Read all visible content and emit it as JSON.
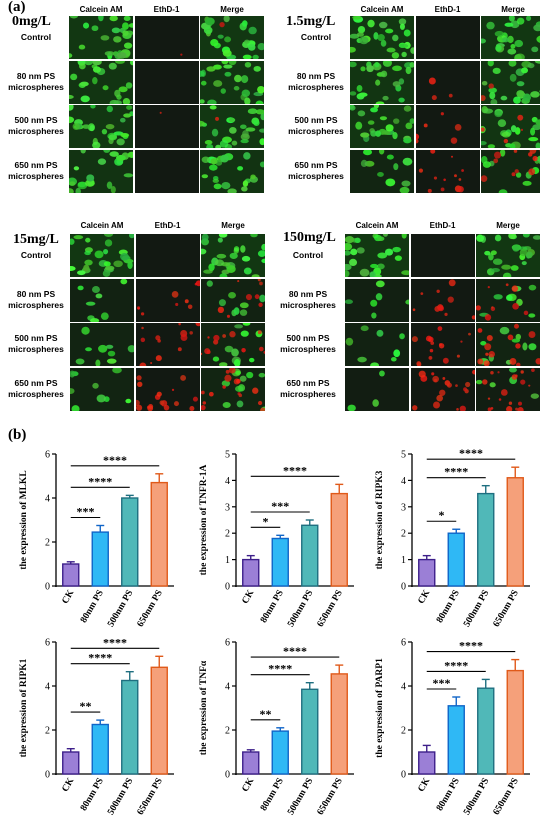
{
  "figure_labels": {
    "a": "(a)",
    "b": "(b)"
  },
  "microscopy": {
    "columns": [
      "Calcein AM",
      "EthD-1",
      "Merge"
    ],
    "rows": [
      "Control",
      "80 nm PS\nmicrospheres",
      "500 nm PS\nmicrospheres",
      "650 nm PS\nmicrospheres"
    ],
    "panels": [
      {
        "concentration": "0mg/L",
        "cells": [
          [
            {
              "g": 0.85,
              "r": 0
            },
            {
              "g": 0,
              "r": 0.05
            },
            {
              "g": 0.85,
              "r": 0.05
            }
          ],
          [
            {
              "g": 0.8,
              "r": 0
            },
            {
              "g": 0,
              "r": 0
            },
            {
              "g": 0.8,
              "r": 0
            }
          ],
          [
            {
              "g": 0.85,
              "r": 0
            },
            {
              "g": 0,
              "r": 0.05
            },
            {
              "g": 0.85,
              "r": 0.05
            }
          ],
          [
            {
              "g": 0.75,
              "r": 0
            },
            {
              "g": 0,
              "r": 0
            },
            {
              "g": 0.75,
              "r": 0
            }
          ]
        ]
      },
      {
        "concentration": "1.5mg/L",
        "cells": [
          [
            {
              "g": 0.85,
              "r": 0
            },
            {
              "g": 0,
              "r": 0
            },
            {
              "g": 0.85,
              "r": 0
            }
          ],
          [
            {
              "g": 0.8,
              "r": 0
            },
            {
              "g": 0,
              "r": 0.15
            },
            {
              "g": 0.8,
              "r": 0.1
            }
          ],
          [
            {
              "g": 0.8,
              "r": 0
            },
            {
              "g": 0,
              "r": 0.25
            },
            {
              "g": 0.8,
              "r": 0.2
            }
          ],
          [
            {
              "g": 0.35,
              "r": 0
            },
            {
              "g": 0,
              "r": 0.55
            },
            {
              "g": 0.4,
              "r": 0.5
            }
          ]
        ]
      },
      {
        "concentration": "15mg/L",
        "cells": [
          [
            {
              "g": 0.85,
              "r": 0
            },
            {
              "g": 0,
              "r": 0
            },
            {
              "g": 0.85,
              "r": 0
            }
          ],
          [
            {
              "g": 0.25,
              "r": 0
            },
            {
              "g": 0,
              "r": 0.4
            },
            {
              "g": 0.25,
              "r": 0.35
            }
          ],
          [
            {
              "g": 0.3,
              "r": 0
            },
            {
              "g": 0,
              "r": 0.6
            },
            {
              "g": 0.35,
              "r": 0.55
            }
          ],
          [
            {
              "g": 0.3,
              "r": 0
            },
            {
              "g": 0,
              "r": 0.75
            },
            {
              "g": 0.35,
              "r": 0.7
            }
          ]
        ]
      },
      {
        "concentration": "150mg/L",
        "cells": [
          [
            {
              "g": 0.85,
              "r": 0
            },
            {
              "g": 0,
              "r": 0
            },
            {
              "g": 0.85,
              "r": 0
            }
          ],
          [
            {
              "g": 0.2,
              "r": 0
            },
            {
              "g": 0,
              "r": 0.45
            },
            {
              "g": 0.25,
              "r": 0.4
            }
          ],
          [
            {
              "g": 0.25,
              "r": 0
            },
            {
              "g": 0,
              "r": 0.7
            },
            {
              "g": 0.3,
              "r": 0.65
            }
          ],
          [
            {
              "g": 0.1,
              "r": 0
            },
            {
              "g": 0,
              "r": 0.9
            },
            {
              "g": 0.15,
              "r": 0.85
            }
          ]
        ]
      }
    ]
  },
  "chart_data": [
    {
      "type": "bar",
      "ylabel": "the expression of MLKL",
      "categories": [
        "CK",
        "80nm PS",
        "500nm PS",
        "650nm PS"
      ],
      "values": [
        1.0,
        2.45,
        4.0,
        4.7
      ],
      "errors": [
        0.1,
        0.3,
        0.12,
        0.4
      ],
      "ylim": [
        0,
        6
      ],
      "yticks": [
        0,
        2,
        4,
        6
      ],
      "significance": [
        {
          "to": 1,
          "label": "***"
        },
        {
          "to": 2,
          "label": "****"
        },
        {
          "to": 3,
          "label": "****"
        }
      ]
    },
    {
      "type": "bar",
      "ylabel": "the expression of TNFR-1A",
      "categories": [
        "CK",
        "80nm PS",
        "500nm PS",
        "650nm PS"
      ],
      "values": [
        1.0,
        1.8,
        2.3,
        3.5
      ],
      "errors": [
        0.15,
        0.12,
        0.2,
        0.35
      ],
      "ylim": [
        0,
        5
      ],
      "yticks": [
        0,
        1,
        2,
        3,
        4,
        5
      ],
      "significance": [
        {
          "to": 1,
          "label": "*"
        },
        {
          "to": 2,
          "label": "***"
        },
        {
          "to": 3,
          "label": "****"
        }
      ]
    },
    {
      "type": "bar",
      "ylabel": "the expression of RIPK3",
      "categories": [
        "CK",
        "80nm PS",
        "500nm PS",
        "650nm PS"
      ],
      "values": [
        1.0,
        2.0,
        3.5,
        4.1
      ],
      "errors": [
        0.15,
        0.15,
        0.3,
        0.4
      ],
      "ylim": [
        0,
        5
      ],
      "yticks": [
        0,
        1,
        2,
        3,
        4,
        5
      ],
      "significance": [
        {
          "to": 1,
          "label": "*"
        },
        {
          "to": 2,
          "label": "****"
        },
        {
          "to": 3,
          "label": "****"
        }
      ]
    },
    {
      "type": "bar",
      "ylabel": "the expression of RIPK1",
      "categories": [
        "CK",
        "80nm PS",
        "500nm PS",
        "650nm PS"
      ],
      "values": [
        1.0,
        2.25,
        4.25,
        4.85
      ],
      "errors": [
        0.15,
        0.2,
        0.4,
        0.5
      ],
      "ylim": [
        0,
        6
      ],
      "yticks": [
        0,
        2,
        4,
        6
      ],
      "significance": [
        {
          "to": 1,
          "label": "**"
        },
        {
          "to": 2,
          "label": "****"
        },
        {
          "to": 3,
          "label": "****"
        }
      ]
    },
    {
      "type": "bar",
      "ylabel": "the expression of TNFα",
      "categories": [
        "CK",
        "80nm PS",
        "500nm PS",
        "650nm PS"
      ],
      "values": [
        1.0,
        1.95,
        3.85,
        4.55
      ],
      "errors": [
        0.1,
        0.15,
        0.3,
        0.4
      ],
      "ylim": [
        0,
        6
      ],
      "yticks": [
        0,
        2,
        4,
        6
      ],
      "significance": [
        {
          "to": 1,
          "label": "**"
        },
        {
          "to": 2,
          "label": "****"
        },
        {
          "to": 3,
          "label": "****"
        }
      ]
    },
    {
      "type": "bar",
      "ylabel": "the expression of PARP1",
      "categories": [
        "CK",
        "80nm PS",
        "500nm PS",
        "650nm PS"
      ],
      "values": [
        1.0,
        3.1,
        3.9,
        4.7
      ],
      "errors": [
        0.3,
        0.4,
        0.4,
        0.5
      ],
      "ylim": [
        0,
        6
      ],
      "yticks": [
        0,
        2,
        4,
        6
      ],
      "significance": [
        {
          "to": 1,
          "label": "***"
        },
        {
          "to": 2,
          "label": "****"
        },
        {
          "to": 3,
          "label": "****"
        }
      ]
    }
  ],
  "colors": {
    "bars": [
      "#9b7fd6",
      "#2fb8f5",
      "#50b8b8",
      "#f5a07a"
    ],
    "bar_edges": [
      "#3d1f8a",
      "#1065c8",
      "#1f6f80",
      "#e05a1a"
    ],
    "calcein": "#35d83a",
    "ethd": "#ff2020"
  }
}
